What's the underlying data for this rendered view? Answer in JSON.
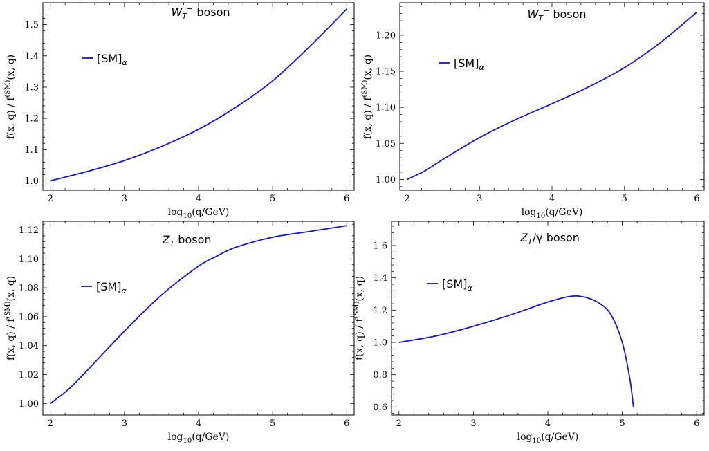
{
  "chart_data": [
    {
      "type": "line",
      "title": "W_T⁺ boson",
      "title_html": {
        "main": "W",
        "sub": "T",
        "sup": "+",
        "rest": " boson"
      },
      "xlabel": {
        "base": "log",
        "sub": "10",
        "rest": "(q/GeV)"
      },
      "ylabel": {
        "pre": "f(x, q) / f",
        "sup": "(SM)",
        "post": "(x, q)"
      },
      "xlim": [
        1.9,
        6.1
      ],
      "ylim": [
        0.97,
        1.57
      ],
      "xticks": [
        2,
        3,
        4,
        5,
        6
      ],
      "yticks": [
        1.0,
        1.1,
        1.2,
        1.3,
        1.4,
        1.5
      ],
      "ytick_labels": [
        "1.0",
        "1.1",
        "1.2",
        "1.3",
        "1.4",
        "1.5"
      ],
      "legend": {
        "label": "[SM]",
        "sub": "α",
        "position": "upper-left"
      },
      "series": [
        {
          "name": "[SM]α",
          "color": "#1515d6",
          "x": [
            2.0,
            2.5,
            3.0,
            3.5,
            4.0,
            4.5,
            5.0,
            5.5,
            6.0
          ],
          "y": [
            1.0,
            1.03,
            1.065,
            1.11,
            1.165,
            1.235,
            1.32,
            1.43,
            1.55
          ]
        }
      ]
    },
    {
      "type": "line",
      "title": "W_T⁻ boson",
      "title_html": {
        "main": "W",
        "sub": "T",
        "sup": "−",
        "rest": " boson"
      },
      "xlabel": {
        "base": "log",
        "sub": "10",
        "rest": "(q/GeV)"
      },
      "ylabel": {
        "pre": "f(x, q) / f",
        "sup": "(SM)",
        "post": "(x, q)"
      },
      "xlim": [
        1.9,
        6.1
      ],
      "ylim": [
        0.985,
        1.245
      ],
      "xticks": [
        2,
        3,
        4,
        5,
        6
      ],
      "yticks": [
        1.0,
        1.05,
        1.1,
        1.15,
        1.2
      ],
      "ytick_labels": [
        "1.00",
        "1.05",
        "1.10",
        "1.15",
        "1.20"
      ],
      "legend": {
        "label": "[SM]",
        "sub": "α",
        "position": "upper-left"
      },
      "series": [
        {
          "name": "[SM]α",
          "color": "#1515d6",
          "x": [
            2.0,
            2.25,
            2.5,
            3.0,
            3.5,
            4.0,
            4.5,
            5.0,
            5.5,
            6.0
          ],
          "y": [
            1.0,
            1.012,
            1.028,
            1.058,
            1.083,
            1.105,
            1.128,
            1.155,
            1.19,
            1.232
          ]
        }
      ]
    },
    {
      "type": "line",
      "title": "Z_T boson",
      "title_html": {
        "main": "Z",
        "sub": "T",
        "sup": "",
        "rest": " boson"
      },
      "xlabel": {
        "base": "log",
        "sub": "10",
        "rest": "(q/GeV)"
      },
      "ylabel": {
        "pre": "f(x, q) / f",
        "sup": "(SM)",
        "post": "(x, q)"
      },
      "xlim": [
        1.9,
        6.1
      ],
      "ylim": [
        0.992,
        1.126
      ],
      "xticks": [
        2,
        3,
        4,
        5,
        6
      ],
      "yticks": [
        1.0,
        1.02,
        1.04,
        1.06,
        1.08,
        1.1,
        1.12
      ],
      "ytick_labels": [
        "1.00",
        "1.02",
        "1.04",
        "1.06",
        "1.08",
        "1.10",
        "1.12"
      ],
      "legend": {
        "label": "[SM]",
        "sub": "α",
        "position": "upper-left"
      },
      "series": [
        {
          "name": "[SM]α",
          "color": "#1515d6",
          "x": [
            2.0,
            2.25,
            2.5,
            3.0,
            3.5,
            4.0,
            4.25,
            4.5,
            5.0,
            5.5,
            6.0
          ],
          "y": [
            1.0,
            1.01,
            1.023,
            1.05,
            1.075,
            1.095,
            1.102,
            1.108,
            1.115,
            1.119,
            1.123
          ]
        }
      ]
    },
    {
      "type": "line",
      "title": "Z_T/γ boson",
      "title_html": {
        "main": "Z",
        "sub": "T",
        "sup": "",
        "rest": "/γ boson"
      },
      "xlabel": {
        "base": "log",
        "sub": "10",
        "rest": "(q/GeV)"
      },
      "ylabel": {
        "pre": "f(x, q) / f",
        "sup": "(SM)",
        "post": "(x, q)"
      },
      "xlim": [
        1.9,
        6.1
      ],
      "ylim": [
        0.55,
        1.75
      ],
      "xticks": [
        2,
        3,
        4,
        5,
        6
      ],
      "yticks": [
        0.6,
        0.8,
        1.0,
        1.2,
        1.4,
        1.6
      ],
      "ytick_labels": [
        "0.6",
        "0.8",
        "1.0",
        "1.2",
        "1.4",
        "1.6"
      ],
      "legend": {
        "label": "[SM]",
        "sub": "α",
        "position": "upper-left"
      },
      "series": [
        {
          "name": "[SM]α",
          "color": "#1515d6",
          "x": [
            2.0,
            2.5,
            3.0,
            3.5,
            4.0,
            4.3,
            4.5,
            4.7,
            4.85,
            5.0,
            5.1,
            5.15
          ],
          "y": [
            1.0,
            1.04,
            1.1,
            1.17,
            1.25,
            1.285,
            1.28,
            1.24,
            1.17,
            1.0,
            0.78,
            0.6
          ]
        }
      ]
    }
  ]
}
